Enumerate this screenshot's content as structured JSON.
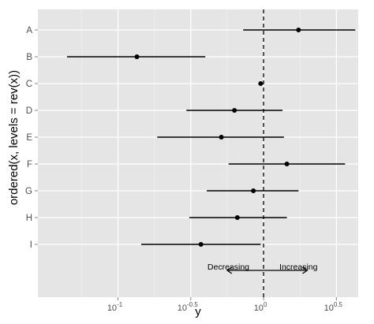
{
  "chart_data": {
    "type": "forest",
    "xlabel": "y",
    "ylabel": "ordered(x, levels = rev(x))",
    "x_scale": "log10",
    "xlim": [
      -1.55,
      0.65
    ],
    "x_ticks": [
      {
        "value": -1.0,
        "label": "10",
        "sup": "-1"
      },
      {
        "value": -0.5,
        "label": "10",
        "sup": "-0.5"
      },
      {
        "value": 0.0,
        "label": "10",
        "sup": "0"
      },
      {
        "value": 0.5,
        "label": "10",
        "sup": "0.5"
      }
    ],
    "categories": [
      "A",
      "B",
      "C",
      "D",
      "E",
      "F",
      "G",
      "H",
      "I"
    ],
    "estimates_log10": [
      0.24,
      -0.87,
      -0.02,
      -0.2,
      -0.29,
      0.16,
      -0.07,
      -0.18,
      -0.43
    ],
    "lower_log10": [
      -0.14,
      -1.35,
      -0.02,
      -0.53,
      -0.73,
      -0.24,
      -0.39,
      -0.51,
      -0.84
    ],
    "upper_log10": [
      0.63,
      -0.4,
      -0.02,
      0.13,
      0.14,
      0.56,
      0.24,
      0.16,
      -0.02
    ],
    "reference_line_log10": 0.0,
    "annotations": {
      "decreasing": "Decreasing",
      "increasing": "Increasing"
    },
    "arrow": {
      "from_log10": 0.0,
      "left_to_log10": -0.25,
      "right_to_log10": 0.3
    },
    "grid": true
  }
}
